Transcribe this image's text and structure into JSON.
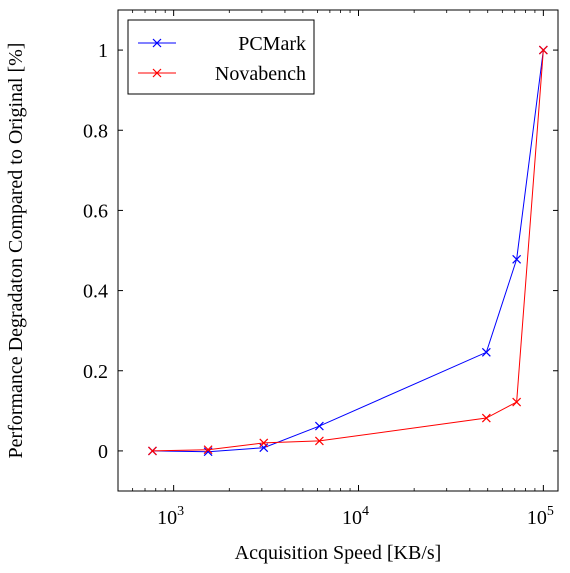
{
  "chart_data": {
    "type": "line",
    "title": "",
    "xlabel": "Acquisition Speed [KB/s]",
    "ylabel": "Performance Degradaton Compared to Original [%]",
    "xscale": "log",
    "xlim": [
      500,
      120000
    ],
    "ylim": [
      -0.1,
      1.1
    ],
    "x_ticks": [
      1000,
      10000,
      100000
    ],
    "x_tick_labels": [
      {
        "base": "10",
        "exp": "3"
      },
      {
        "base": "10",
        "exp": "4"
      },
      {
        "base": "10",
        "exp": "5"
      }
    ],
    "y_ticks": [
      0,
      0.2,
      0.4,
      0.6,
      0.8,
      1
    ],
    "y_tick_labels": [
      "0",
      "0.2",
      "0.4",
      "0.6",
      "0.8",
      "1"
    ],
    "grid": false,
    "legend_position": "top-left",
    "x": [
      768,
      1536,
      3072,
      6144,
      49152,
      71680,
      100000
    ],
    "series": [
      {
        "name": "PCMark",
        "color": "#0000ff",
        "marker": "cross",
        "values": [
          0,
          -0.002,
          0.008,
          0.062,
          0.246,
          0.478,
          1.0
        ]
      },
      {
        "name": "Novabench",
        "color": "#ff0000",
        "marker": "cross",
        "values": [
          0,
          0.003,
          0.02,
          0.025,
          0.082,
          0.122,
          1.0
        ]
      }
    ]
  }
}
